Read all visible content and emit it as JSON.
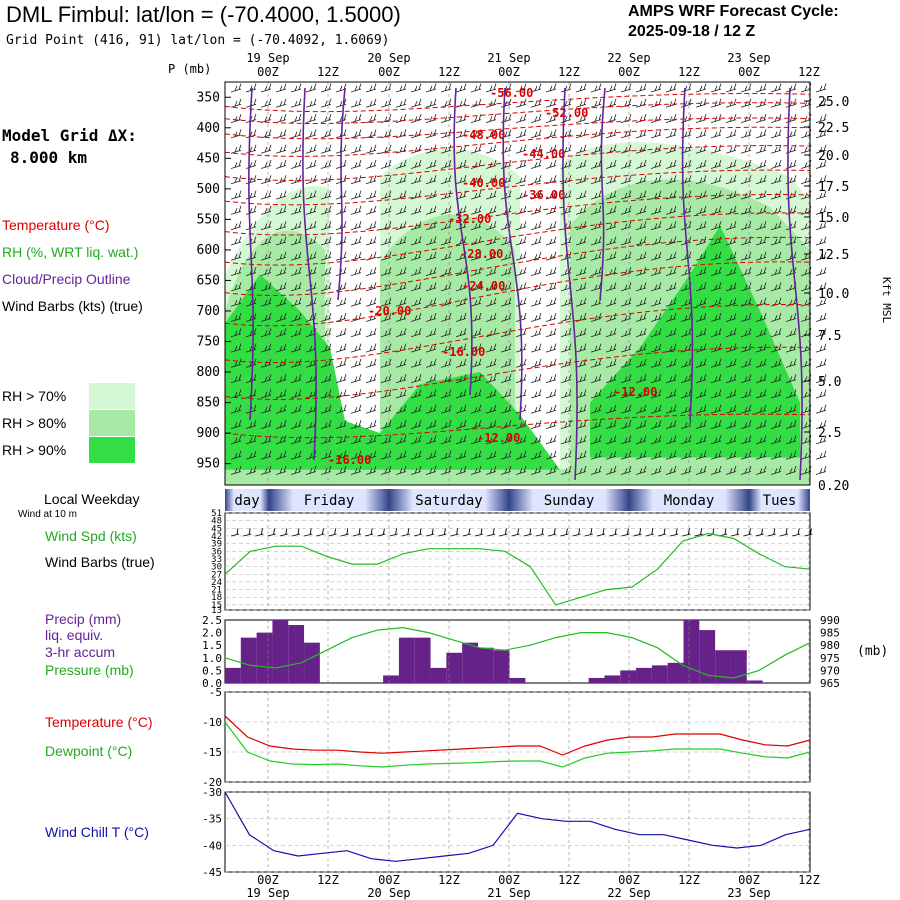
{
  "header": {
    "title": "DML Fimbul:  lat/lon = (-70.4000, 1.5000)",
    "subtitle": "Grid Point (416, 91) lat/lon = (-70.4092, 1.6069)",
    "cycle_line1": "AMPS WRF Forecast Cycle:",
    "cycle_line2": "2025-09-18 / 12  Z"
  },
  "time_axis": {
    "hour_labels": [
      "00Z",
      "12Z",
      "00Z",
      "12Z",
      "00Z",
      "12Z",
      "00Z",
      "12Z",
      "00Z",
      "12Z"
    ],
    "date_labels": [
      "19 Sep",
      "20 Sep",
      "21 Sep",
      "22 Sep",
      "23 Sep"
    ],
    "weekdays": [
      "day",
      "Friday",
      "Saturday",
      "Sunday",
      "Monday",
      "Tues"
    ]
  },
  "left_legend": {
    "model_grid_line1": "Model Grid ΔX:",
    "model_grid_line2": "8.000 km",
    "temperature": "Temperature (°C)",
    "rh": "RH (%, WRT liq. wat.)",
    "cloud": "Cloud/Precip Outline",
    "wind": "Wind Barbs (kts) (true)",
    "rh70": "RH > 70%",
    "rh80": "RH > 80%",
    "rh90": "RH > 90%",
    "pressure_axis_label": "P (mb)",
    "local_weekday": "Local Weekday",
    "wind_at": "Wind at 10 m",
    "wind_spd": "Wind Spd (kts)",
    "wind_barbs": "Wind Barbs (true)",
    "precip_l1": "Precip (mm)",
    "precip_l2": "liq. equiv.",
    "precip_l3": "3-hr accum",
    "pressure": "Pressure (mb)",
    "temp_panel": "Temperature (°C)",
    "dewpoint": "Dewpoint (°C)",
    "windchill": "Wind Chill T (°C)"
  },
  "colors": {
    "rh70": "#d4f7d4",
    "rh80": "#a6eaa6",
    "rh90": "#33dd44",
    "temperature": "#dd0000",
    "dewpoint": "#22cc22",
    "wind_speed": "#22bb22",
    "precip": "#662288",
    "pressure": "#22bb22",
    "windchill": "#1010aa",
    "cloud": "#662299"
  },
  "chart_data": [
    {
      "type": "heatmap",
      "name": "cross-section",
      "pressure_ticks": [
        350,
        400,
        450,
        500,
        550,
        600,
        650,
        700,
        750,
        800,
        850,
        900,
        950
      ],
      "height_ticks_kft": [
        "25.0",
        "22.5",
        "20.0",
        "17.5",
        "15.0",
        "12.5",
        "10.0",
        "7.5",
        "5.0",
        "2.5",
        "0.20"
      ],
      "right_axis_label": "Kft MSL",
      "temperature_labels": [
        "-56.00",
        "-52.00",
        "-48.00",
        "-44.00",
        "-40.00",
        "-36.00",
        "-32.00",
        "-28.00",
        "-24.00",
        "-20.00",
        "-16.00",
        "-12.00",
        "-12.00",
        "-16.00"
      ]
    },
    {
      "type": "line",
      "name": "wind speed",
      "y_ticks": [
        13,
        15,
        18,
        21,
        24,
        27,
        30,
        33,
        36,
        39,
        42,
        45,
        48,
        51
      ],
      "ylim": [
        13,
        51
      ],
      "series": [
        {
          "name": "Wind Spd (kts)",
          "values": [
            27,
            36,
            38,
            38,
            34,
            31,
            31,
            35,
            37,
            37,
            37,
            36,
            30,
            15,
            18,
            21,
            22,
            29,
            40,
            43,
            41,
            35,
            30,
            29
          ]
        }
      ]
    },
    {
      "type": "bar",
      "name": "precip/pressure",
      "y_ticks_left": [
        "0.0",
        "0.5",
        "1.0",
        "1.5",
        "2.0",
        "2.5"
      ],
      "y_ticks_right": [
        965,
        970,
        975,
        980,
        985,
        990
      ],
      "ylim": [
        0,
        2.5
      ],
      "ylim_right": [
        965,
        990
      ],
      "units_right": "(mb)",
      "series": [
        {
          "name": "Precip (mm)",
          "values": [
            0.6,
            1.8,
            2.0,
            2.5,
            2.3,
            1.6,
            0,
            0,
            0,
            0,
            0.3,
            1.8,
            1.8,
            0.6,
            1.2,
            1.6,
            1.4,
            1.3,
            0.2,
            0,
            0,
            0,
            0,
            0.2,
            0.3,
            0.5,
            0.6,
            0.7,
            0.8,
            2.5,
            2.1,
            1.3,
            1.3,
            0.1,
            0,
            0,
            0
          ]
        },
        {
          "name": "Pressure (mb)",
          "values": [
            975,
            972,
            971,
            973,
            978,
            983,
            986,
            987,
            985,
            982,
            979,
            978,
            980,
            983,
            985,
            985,
            983,
            979,
            972,
            968,
            967,
            970,
            976,
            981
          ]
        }
      ]
    },
    {
      "type": "line",
      "name": "temperature/dewpoint",
      "y_ticks": [
        -5,
        -10,
        -15,
        -20
      ],
      "ylim": [
        -20,
        -5
      ],
      "series": [
        {
          "name": "Temperature (°C)",
          "values": [
            -9,
            -12.5,
            -14,
            -14.5,
            -14.7,
            -14.7,
            -15,
            -15.2,
            -15,
            -14.8,
            -14.6,
            -14.4,
            -14.2,
            -14,
            -14,
            -15.5,
            -14,
            -13,
            -12.5,
            -12.5,
            -12,
            -12,
            -12,
            -13,
            -13.8,
            -14,
            -13
          ]
        },
        {
          "name": "Dewpoint (°C)",
          "values": [
            -10,
            -15,
            -16.5,
            -17,
            -17.1,
            -17,
            -17.3,
            -17.5,
            -17.2,
            -17,
            -16.9,
            -16.8,
            -16.6,
            -16.5,
            -16.5,
            -17.5,
            -16,
            -15.2,
            -15,
            -14.8,
            -14.5,
            -14.5,
            -14.5,
            -15.2,
            -15.8,
            -16,
            -15
          ]
        }
      ]
    },
    {
      "type": "line",
      "name": "wind chill",
      "y_ticks": [
        -30,
        -35,
        -40,
        -45
      ],
      "ylim": [
        -45,
        -30
      ],
      "series": [
        {
          "name": "Wind Chill T (°C)",
          "values": [
            -30,
            -38,
            -41,
            -42,
            -41.5,
            -41,
            -42.5,
            -43,
            -42.5,
            -42,
            -41.5,
            -40,
            -34,
            -35,
            -35.5,
            -35.5,
            -37,
            -38,
            -38,
            -39,
            -40,
            -40.5,
            -40,
            -38,
            -37
          ]
        }
      ]
    }
  ]
}
